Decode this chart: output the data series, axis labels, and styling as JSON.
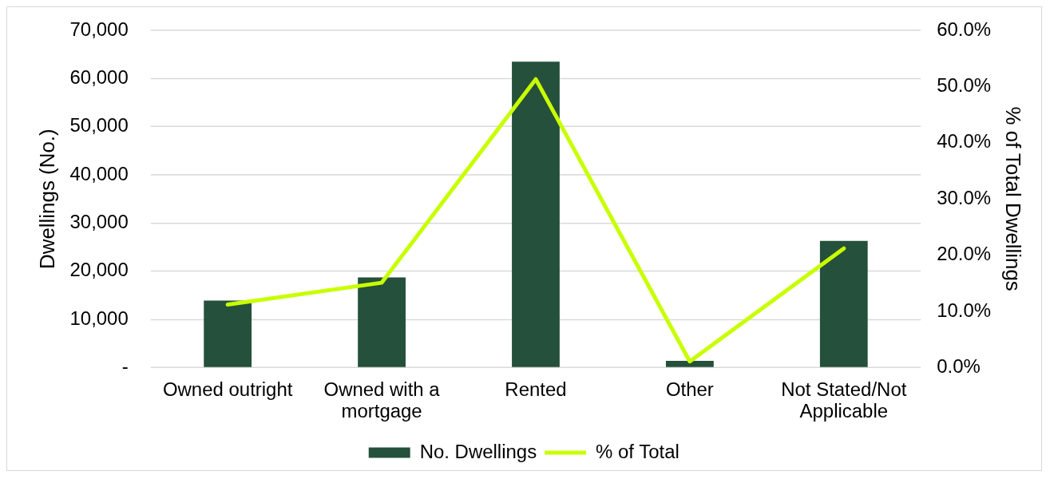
{
  "chart_data": {
    "type": "bar",
    "categories": [
      "Owned outright",
      "Owned with a mortgage",
      "Rented",
      "Other",
      "Not Stated/Not Applicable"
    ],
    "series": [
      {
        "name": "No. Dwellings",
        "color": "#25503b",
        "values": [
          13900,
          18700,
          63500,
          1400,
          26300
        ]
      },
      {
        "name": "% of Total",
        "type": "line",
        "axis": "y2",
        "color": "#c8ff00",
        "values": [
          11.2,
          15.1,
          51.3,
          1.1,
          21.2
        ]
      }
    ],
    "ylabel": "Dwellings (No.)",
    "y2label": "% of Total Dwellings",
    "ylim": [
      0,
      70000
    ],
    "yticks": [
      {
        "value": 0,
        "label": "-"
      },
      {
        "value": 10000,
        "label": "10,000"
      },
      {
        "value": 20000,
        "label": "20,000"
      },
      {
        "value": 30000,
        "label": "30,000"
      },
      {
        "value": 40000,
        "label": "40,000"
      },
      {
        "value": 50000,
        "label": "50,000"
      },
      {
        "value": 60000,
        "label": "60,000"
      },
      {
        "value": 70000,
        "label": "70,000"
      }
    ],
    "y2lim": [
      0,
      60
    ],
    "y2ticks": [
      {
        "value": 0,
        "label": "0.0%"
      },
      {
        "value": 10,
        "label": "10.0%"
      },
      {
        "value": 20,
        "label": "20.0%"
      },
      {
        "value": 30,
        "label": "30.0%"
      },
      {
        "value": 40,
        "label": "40.0%"
      },
      {
        "value": 50,
        "label": "50.0%"
      },
      {
        "value": 60,
        "label": "60.0%"
      }
    ],
    "grid": "y",
    "legend": "bottom",
    "line_style": "solid"
  }
}
